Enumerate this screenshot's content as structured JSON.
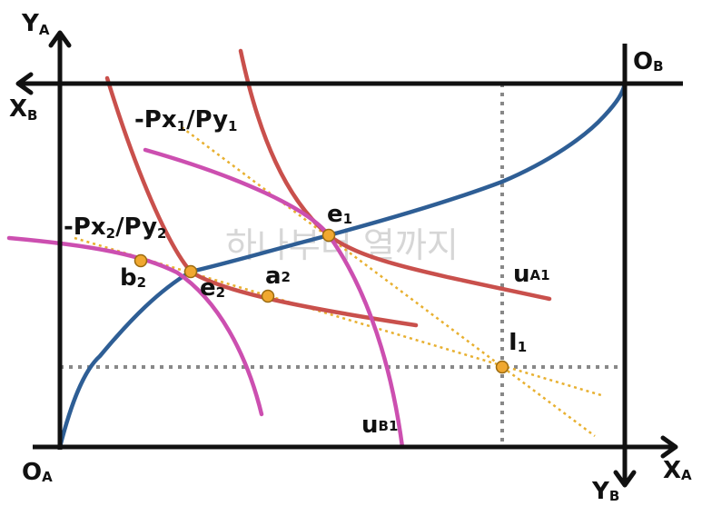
{
  "axes": {
    "ya": {
      "main": "Y",
      "sub": "A"
    },
    "xb": {
      "main": "X",
      "sub": "B"
    },
    "ob": {
      "main": "O",
      "sub": "B"
    },
    "oa": {
      "main": "O",
      "sub": "A"
    },
    "xa": {
      "main": "X",
      "sub": "A"
    },
    "yb": {
      "main": "Y",
      "sub": "B"
    }
  },
  "labels": {
    "price_ratio_1": {
      "a": "-Px",
      "a_sub": "1",
      "b": "/Py",
      "b_sub": "1"
    },
    "price_ratio_2": {
      "a": "-Px",
      "a_sub": "2",
      "b": "/Py",
      "b_sub": "2"
    },
    "e1": {
      "main": "e",
      "sub": "1"
    },
    "e2": {
      "main": "e",
      "sub": "2"
    },
    "a2": {
      "main": "a",
      "sub": "2"
    },
    "b2": {
      "main": "b",
      "sub": "2"
    },
    "i1": {
      "main": "I",
      "sub": "1"
    },
    "ua1": {
      "main": "u",
      "sub": "A1"
    },
    "ub1": {
      "main": "u",
      "sub": "B1"
    }
  },
  "watermark": "하나부터 열까지",
  "colors": {
    "axis": "#111111",
    "contract_curve": "#2e5e95",
    "indifference_a": "#c9504c",
    "indifference_b": "#cc4fb0",
    "price_line": "#e8b030",
    "guide": "#888888",
    "point_fill": "#f0a830",
    "point_stroke": "#9a6a10"
  }
}
